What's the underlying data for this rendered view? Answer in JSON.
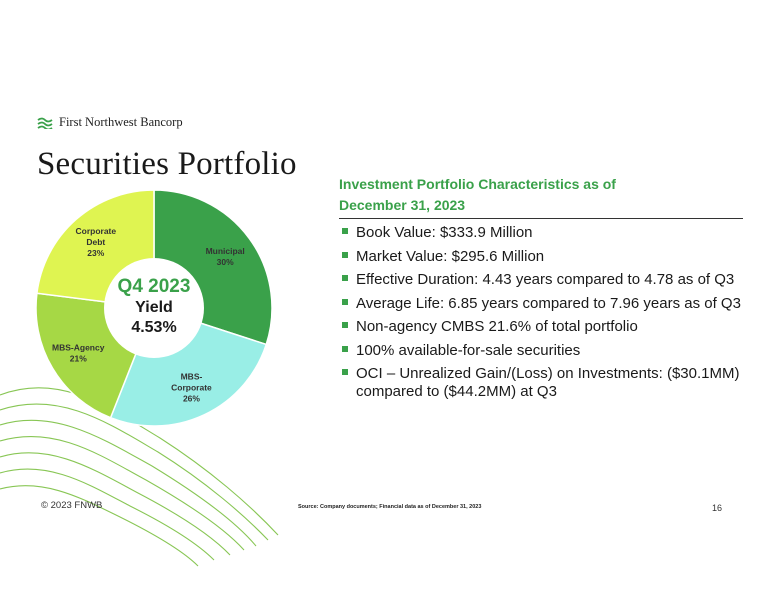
{
  "header": {
    "logo_text": "First Northwest Bancorp",
    "title": "Securities Portfolio"
  },
  "chart_data": {
    "type": "pie",
    "variant": "donut",
    "categories": [
      "Municipal",
      "MBS-Corporate",
      "MBS-Agency",
      "Corporate Debt"
    ],
    "values": [
      30,
      26,
      21,
      23
    ],
    "value_labels": [
      "30%",
      "26%",
      "21%",
      "23%"
    ],
    "colors": [
      "#3aa14a",
      "#99eee6",
      "#a6d845",
      "#dff451"
    ],
    "center": {
      "line1": "Q4 2023",
      "line2": "Yield",
      "line3": "4.53%"
    },
    "title": ""
  },
  "panel": {
    "heading_line1": "Investment Portfolio Characteristics as of",
    "heading_line2": "December 31, 2023",
    "bullets": [
      "Book Value:  $333.9 Million",
      "Market Value:  $295.6 Million",
      "Effective Duration: 4.43 years compared to 4.78 as of Q3",
      "Average Life: 6.85 years compared to 7.96 years as of Q3",
      "Non-agency CMBS 21.6% of total portfolio",
      "100% available-for-sale securities",
      "OCI – Unrealized Gain/(Loss) on Investments: ($30.1MM) compared to ($44.2MM) at Q3"
    ]
  },
  "footer": {
    "copyright": "© 2023 FNWB",
    "source": "Source: Company documents; Financial data as of December 31, 2023",
    "page_number": "16"
  }
}
